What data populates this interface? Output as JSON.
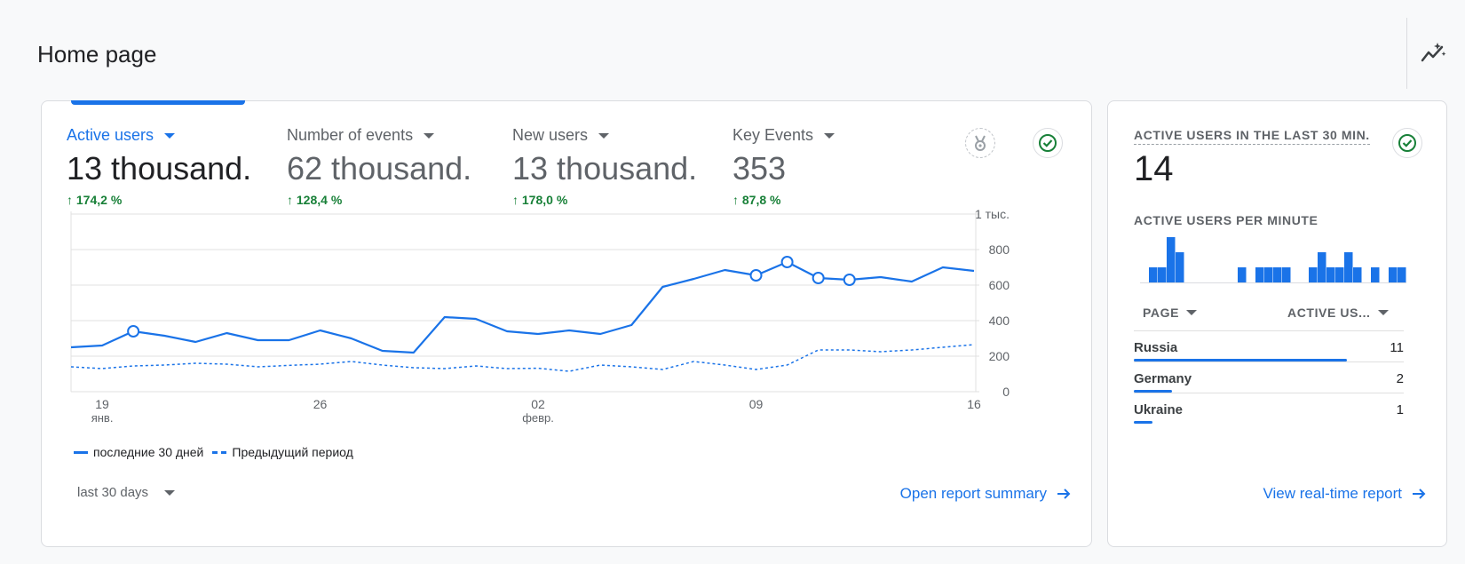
{
  "page": {
    "title": "Home page"
  },
  "main_card": {
    "metrics": [
      {
        "label": "Active users",
        "value": "13 thousand.",
        "change": "174,2 %",
        "active": true
      },
      {
        "label": "Number of events",
        "value": "62 thousand.",
        "change": "128,4 %",
        "active": false
      },
      {
        "label": "New users",
        "value": "13 thousand.",
        "change": "178,0 %",
        "active": false
      },
      {
        "label": "Key Events",
        "value": "353",
        "change": "87,8 %",
        "active": false
      }
    ],
    "legend": {
      "current": "последние 30 дней",
      "previous": "Предыдущий период"
    },
    "date_range": "last 30 days",
    "open_report_label": "Open report summary"
  },
  "chart_data": {
    "type": "line",
    "y_ticks": [
      {
        "label": "1 тыс.",
        "value": 1000
      },
      {
        "label": "800",
        "value": 800
      },
      {
        "label": "600",
        "value": 600
      },
      {
        "label": "400",
        "value": 400
      },
      {
        "label": "200",
        "value": 200
      },
      {
        "label": "0",
        "value": 0
      }
    ],
    "ylim": [
      0,
      1000
    ],
    "x_ticks": [
      {
        "label": "19",
        "sub": "янв.",
        "index": 1
      },
      {
        "label": "26",
        "sub": "",
        "index": 8
      },
      {
        "label": "02",
        "sub": "февр.",
        "index": 15
      },
      {
        "label": "09",
        "sub": "",
        "index": 22
      },
      {
        "label": "16",
        "sub": "",
        "index": 29
      }
    ],
    "series": [
      {
        "name": "последние 30 дней",
        "style": "solid",
        "color": "#1a73e8",
        "values": [
          250,
          260,
          340,
          315,
          280,
          330,
          290,
          290,
          345,
          300,
          230,
          220,
          420,
          410,
          340,
          325,
          345,
          325,
          375,
          590,
          635,
          685,
          655,
          730,
          640,
          630,
          645,
          620,
          700,
          680
        ],
        "marked": [
          2,
          22,
          23,
          24,
          25
        ]
      },
      {
        "name": "Предыдущий период",
        "style": "dashed",
        "color": "#1a73e8",
        "values": [
          140,
          130,
          145,
          150,
          160,
          155,
          140,
          148,
          155,
          170,
          150,
          135,
          130,
          145,
          130,
          132,
          115,
          150,
          140,
          125,
          170,
          150,
          125,
          150,
          235,
          235,
          225,
          235,
          250,
          265
        ]
      }
    ]
  },
  "realtime": {
    "title": "ACTIVE USERS IN THE LAST 30 MIN.",
    "count": "14",
    "per_minute_label": "ACTIVE USERS PER MINUTE",
    "per_minute": [
      0,
      1,
      1,
      3,
      2,
      0,
      0,
      0,
      0,
      0,
      0,
      1,
      0,
      1,
      1,
      1,
      1,
      0,
      0,
      1,
      2,
      1,
      1,
      2,
      1,
      0,
      1,
      0,
      1,
      1
    ],
    "col_page": "PAGE",
    "col_users": "ACTIVE US...",
    "rows": [
      {
        "name": "Russia",
        "value": "11",
        "share": 0.79
      },
      {
        "name": "Germany",
        "value": "2",
        "share": 0.14
      },
      {
        "name": "Ukraine",
        "value": "1",
        "share": 0.07
      }
    ],
    "link_label": "View real-time report"
  },
  "icons": {
    "insights": "insights-sparkle-icon",
    "award": "award-medal-icon",
    "check": "check-circle-icon",
    "arrow": "arrow-right-icon"
  },
  "colors": {
    "accent": "#1a73e8",
    "positive": "#188038",
    "text": "#202124",
    "muted": "#5f6368"
  }
}
